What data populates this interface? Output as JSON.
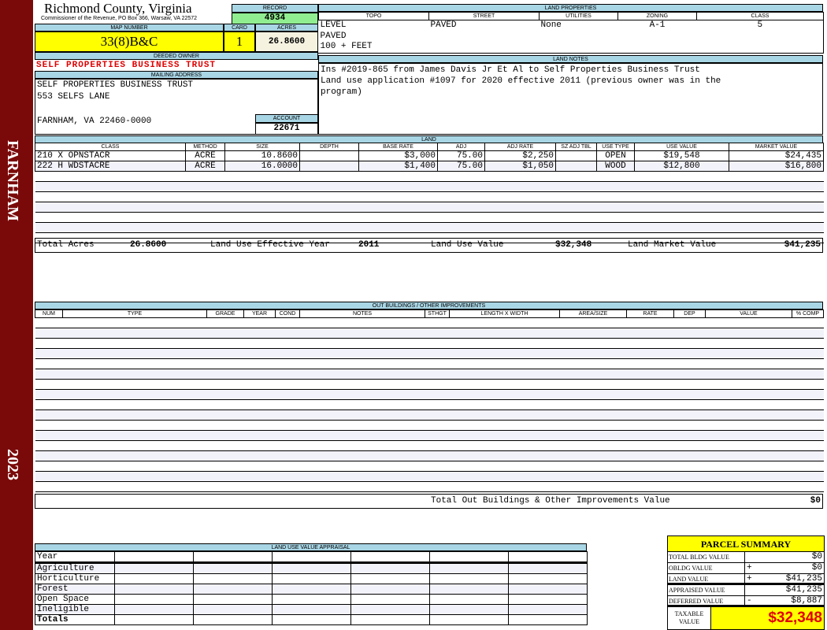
{
  "sidebar": {
    "location": "FARNHAM",
    "year": "2023"
  },
  "header": {
    "county": "Richmond County, Virginia",
    "subtitle": "Commissioner of the Revenue, PO Box 366, Warsaw, VA 22572",
    "record_label": "RECORD",
    "record": "4934"
  },
  "parcel": {
    "map_label": "MAP NUMBER",
    "map_number": "33(8)B&C",
    "card_label": "CARD",
    "card": "1",
    "acres_label": "ACRES",
    "acres": "26.8600"
  },
  "owner": {
    "deeded_label": "DEEDED OWNER",
    "deeded": "SELF PROPERTIES BUSINESS TRUST",
    "mailing_label": "MAILING ADDRESS",
    "line1": "SELF PROPERTIES BUSINESS TRUST",
    "line2": "553 SELFS LANE",
    "line3": "FARNHAM, VA 22460-0000",
    "account_label": "ACCOUNT",
    "account": "22671"
  },
  "land_properties": {
    "title": "LAND PROPERTIES",
    "headers": [
      "TOPO",
      "STREET",
      "UTILITIES",
      "ZONING",
      "CLASS"
    ],
    "topo": [
      "LEVEL",
      "PAVED",
      "100 + FEET"
    ],
    "street": "PAVED",
    "utilities": "None",
    "zoning": "A-1",
    "class": "5"
  },
  "land_notes": {
    "title": "LAND NOTES",
    "lines": [
      "Ins #2019-865 from James Davis Jr Et Al to Self Properties Business Trust",
      "Land use application #1097 for 2020 effective 2011 (previous owner was in the",
      "program)"
    ]
  },
  "land": {
    "title": "LAND",
    "headers": [
      "CLASS",
      "METHOD",
      "SIZE",
      "DEPTH",
      "BASE RATE",
      "ADJ",
      "ADJ RATE",
      "SZ ADJ TBL",
      "USE TYPE",
      "USE VALUE",
      "MARKET VALUE"
    ],
    "rows": [
      [
        "210 X OPNSTACR",
        "ACRE",
        "10.8600",
        "",
        "$3,000",
        "75.00",
        "$2,250",
        "",
        "OPEN",
        "$19,548",
        "$24,435"
      ],
      [
        "222 H WDSTACRE",
        "ACRE",
        "16.0000",
        "",
        "$1,400",
        "75.00",
        "$1,050",
        "",
        "WOOD",
        "$12,800",
        "$16,800"
      ]
    ],
    "total_acres_label": "Total Acres",
    "total_acres": "26.8600",
    "effective_year_label": "Land Use Effective Year",
    "effective_year": "2011",
    "use_value_label": "Land Use Value",
    "use_value": "$32,348",
    "market_value_label": "Land Market Value",
    "market_value": "$41,235"
  },
  "outbuildings": {
    "title": "OUT BUILDINGS / OTHER IMPROVEMENTS",
    "headers": [
      "NUM",
      "TYPE",
      "GRADE",
      "YEAR",
      "COND",
      "NOTES",
      "STHGT",
      "LENGTH X WIDTH",
      "AREA/SIZE",
      "RATE",
      "DEP",
      "VALUE",
      "% COMP"
    ],
    "total_label": "Total Out Buildings & Other Improvements Value",
    "total": "$0"
  },
  "land_use": {
    "title": "LAND USE VALUE APPRAISAL",
    "year_label": "Year",
    "rows": [
      "Agriculture",
      "Horticulture",
      "Forest",
      "Open Space",
      "Ineligible"
    ],
    "totals_label": "Totals"
  },
  "summary": {
    "title": "PARCEL SUMMARY",
    "rows": [
      {
        "label": "TOTAL BLDG VALUE",
        "op": "",
        "value": "$0"
      },
      {
        "label": "OBLDG VALUE",
        "op": "+",
        "value": "$0"
      },
      {
        "label": "LAND VALUE",
        "op": "+",
        "value": "$41,235"
      },
      {
        "label": "APPRAISED VALUE",
        "op": "",
        "value": "$41,235"
      },
      {
        "label": "DEFERRED VALUE",
        "op": "-",
        "value": "$8,887"
      }
    ],
    "taxable_label": "TAXABLE VALUE",
    "taxable": "$32,348"
  },
  "colors": {
    "sidebar": "#7a0a0a",
    "label_bg": "#a9d6e5",
    "highlight": "#ffff00",
    "record_bg": "#90ee90",
    "owner_text": "#e00000"
  }
}
